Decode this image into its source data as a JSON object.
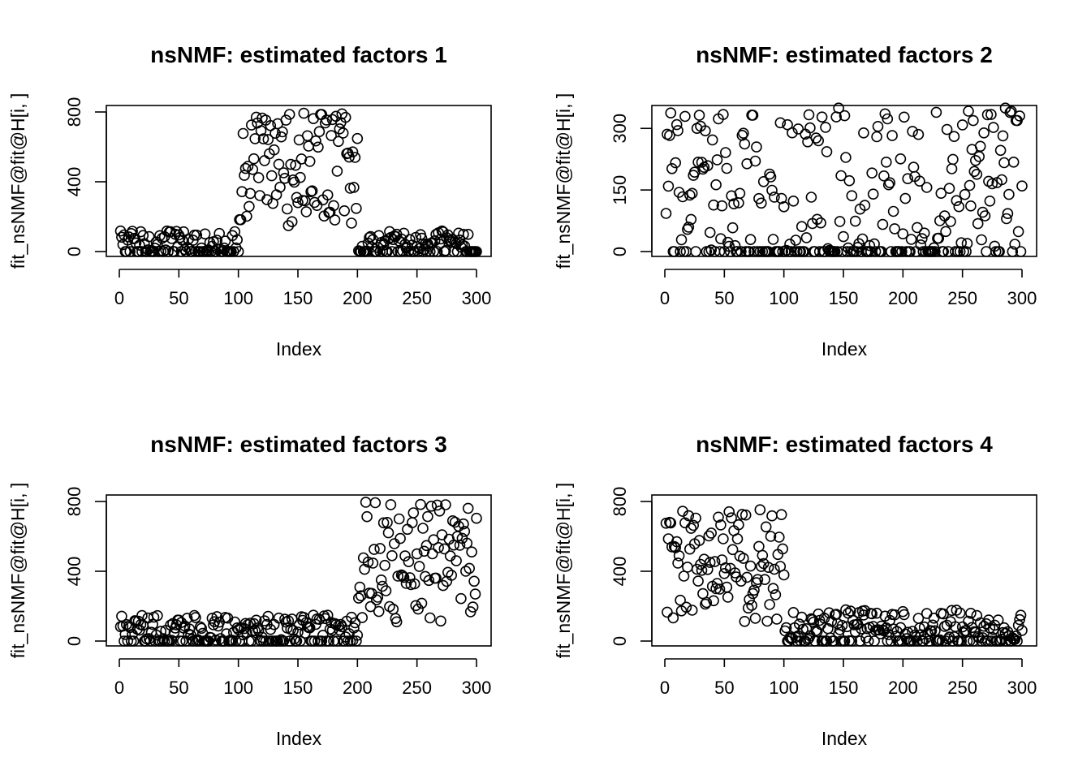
{
  "chart_data": [
    {
      "type": "scatter",
      "title": "nsNMF: estimated factors 1",
      "xlabel": "Index",
      "ylabel": "fit_nsNMF@fit@H[i, ]",
      "xlim": [
        0,
        300
      ],
      "ylim": [
        0,
        800
      ],
      "xticks": [
        "0",
        "50",
        "100",
        "150",
        "200",
        "250",
        "300"
      ],
      "yticks": [
        "0",
        "400",
        "800"
      ],
      "yticks_values": [
        0,
        400,
        800
      ],
      "grid": false,
      "regions": [
        {
          "x_range": [
            1,
            100
          ],
          "y_range": [
            0,
            120
          ],
          "zero_fraction": 0.35
        },
        {
          "x_range": [
            101,
            200
          ],
          "y_range": [
            140,
            800
          ],
          "zero_fraction": 0.0
        },
        {
          "x_range": [
            201,
            300
          ],
          "y_range": [
            0,
            120
          ],
          "zero_fraction": 0.35
        }
      ]
    },
    {
      "type": "scatter",
      "title": "nsNMF: estimated factors 2",
      "xlabel": "Index",
      "ylabel": "fit_nsNMF@fit@H[i, ]",
      "xlim": [
        0,
        300
      ],
      "ylim": [
        0,
        340
      ],
      "xticks": [
        "0",
        "50",
        "100",
        "150",
        "200",
        "250",
        "300"
      ],
      "yticks": [
        "0",
        "150",
        "300"
      ],
      "yticks_values": [
        0,
        150,
        300
      ],
      "grid": false,
      "regions": [
        {
          "x_range": [
            1,
            300
          ],
          "y_range": [
            0,
            350
          ],
          "zero_fraction": 0.3
        }
      ]
    },
    {
      "type": "scatter",
      "title": "nsNMF: estimated factors 3",
      "xlabel": "Index",
      "ylabel": "fit_nsNMF@fit@H[i, ]",
      "xlim": [
        0,
        300
      ],
      "ylim": [
        0,
        800
      ],
      "xticks": [
        "0",
        "50",
        "100",
        "150",
        "200",
        "250",
        "300"
      ],
      "yticks": [
        "0",
        "400",
        "800"
      ],
      "yticks_values": [
        0,
        400,
        800
      ],
      "grid": false,
      "regions": [
        {
          "x_range": [
            1,
            200
          ],
          "y_range": [
            0,
            150
          ],
          "zero_fraction": 0.3
        },
        {
          "x_range": [
            201,
            300
          ],
          "y_range": [
            110,
            800
          ],
          "zero_fraction": 0.0
        }
      ]
    },
    {
      "type": "scatter",
      "title": "nsNMF: estimated factors 4",
      "xlabel": "Index",
      "ylabel": "fit_nsNMF@fit@H[i, ]",
      "xlim": [
        0,
        300
      ],
      "ylim": [
        0,
        800
      ],
      "xticks": [
        "0",
        "50",
        "100",
        "150",
        "200",
        "250",
        "300"
      ],
      "yticks": [
        "0",
        "400",
        "800"
      ],
      "yticks_values": [
        0,
        400,
        800
      ],
      "grid": false,
      "regions": [
        {
          "x_range": [
            1,
            100
          ],
          "y_range": [
            110,
            790
          ],
          "zero_fraction": 0.0
        },
        {
          "x_range": [
            101,
            300
          ],
          "y_range": [
            0,
            180
          ],
          "zero_fraction": 0.3
        }
      ]
    }
  ]
}
